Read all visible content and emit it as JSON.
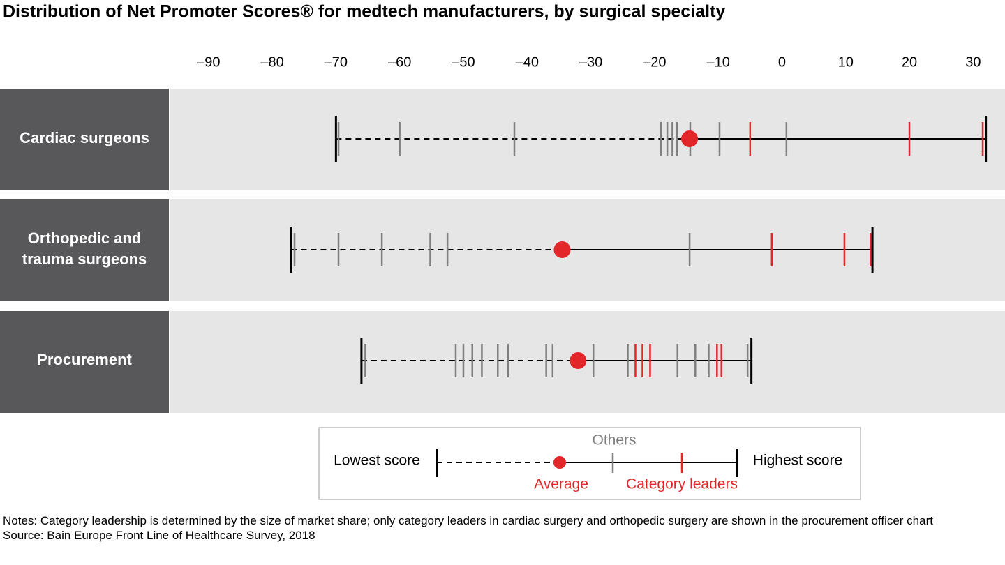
{
  "chart_data": {
    "type": "range",
    "title": "Distribution of Net Promoter Scores® for medtech manufacturers, by surgical specialty",
    "xlim": [
      -96,
      35
    ],
    "xticks": [
      {
        "value": -90,
        "label": "–90"
      },
      {
        "value": -80,
        "label": "–80"
      },
      {
        "value": -70,
        "label": "–70"
      },
      {
        "value": -60,
        "label": "–60"
      },
      {
        "value": -50,
        "label": "–50"
      },
      {
        "value": -40,
        "label": "–40"
      },
      {
        "value": -30,
        "label": "–30"
      },
      {
        "value": -20,
        "label": "–20"
      },
      {
        "value": -10,
        "label": "–10"
      },
      0,
      10,
      20,
      30
    ],
    "rows": [
      {
        "name": "Cardiac surgeons",
        "lowest": -70,
        "highest": 32,
        "average": -14.5,
        "others": [
          -69.6,
          -60,
          -42,
          -19,
          -18,
          -17.2,
          -16.5,
          -14.4,
          -9.8,
          0.7
        ],
        "leaders": [
          -5,
          20,
          31.5
        ]
      },
      {
        "name": "Orthopedic and trauma surgeons",
        "lowest": -77,
        "highest": 14.2,
        "average": -34.5,
        "others": [
          -76.5,
          -69.6,
          -62.8,
          -55.2,
          -52.5,
          -14.5
        ],
        "leaders": [
          -1.6,
          9.8,
          13.9
        ]
      },
      {
        "name": "Procurement",
        "lowest": -66,
        "highest": -4.8,
        "average": -32,
        "others": [
          -65.4,
          -51.2,
          -50,
          -48.6,
          -47.1,
          -44.6,
          -43,
          -37,
          -36,
          -29.6,
          -24.2,
          -16.4,
          -13.6,
          -11.5,
          -5.4
        ],
        "leaders": [
          -23,
          -21.9,
          -20.7,
          -10.2,
          -9.5
        ]
      }
    ],
    "colors": {
      "range": "#000000",
      "others": "#7f7f7f",
      "leaders": "#e3262a",
      "average": "#e3262a",
      "label_box": "#58585a",
      "band": "#e6e6e6"
    },
    "legend": {
      "lowest": "Lowest score",
      "others": "Others",
      "average": "Average",
      "leaders": "Category leaders",
      "highest": "Highest score"
    },
    "notes": "Notes: Category leadership is determined by the size of market share; only category leaders in cardiac surgery and orthopedic surgery are shown in the procurement officer chart",
    "source": "Source: Bain Europe Front Line of Healthcare Survey, 2018"
  }
}
